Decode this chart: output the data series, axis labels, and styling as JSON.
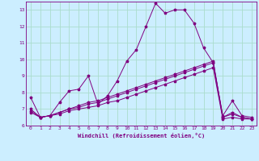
{
  "bg_color": "#cceeff",
  "grid_color": "#aaddcc",
  "line_color": "#800080",
  "marker": "*",
  "xlim": [
    -0.5,
    23.5
  ],
  "ylim": [
    6,
    13.5
  ],
  "yticks": [
    6,
    7,
    8,
    9,
    10,
    11,
    12,
    13
  ],
  "xticks": [
    0,
    1,
    2,
    3,
    4,
    5,
    6,
    7,
    8,
    9,
    10,
    11,
    12,
    13,
    14,
    15,
    16,
    17,
    18,
    19,
    20,
    21,
    22,
    23
  ],
  "xlabel": "Windchill (Refroidissement éolien,°C)",
  "curve1_y": [
    7.7,
    6.5,
    6.6,
    7.4,
    8.1,
    8.2,
    9.0,
    7.3,
    7.8,
    8.7,
    9.9,
    10.6,
    12.0,
    13.4,
    12.8,
    13.0,
    13.0,
    12.2,
    10.7,
    9.8,
    6.6,
    7.5,
    6.6,
    6.5
  ],
  "curve2_y": [
    6.8,
    6.5,
    6.6,
    6.7,
    6.9,
    7.0,
    7.1,
    7.2,
    7.4,
    7.5,
    7.7,
    7.9,
    8.1,
    8.3,
    8.5,
    8.7,
    8.9,
    9.1,
    9.3,
    9.5,
    6.4,
    6.5,
    6.4,
    6.4
  ],
  "curve3_y": [
    6.9,
    6.5,
    6.6,
    6.8,
    7.0,
    7.1,
    7.3,
    7.4,
    7.6,
    7.8,
    8.0,
    8.2,
    8.4,
    8.6,
    8.8,
    9.0,
    9.2,
    9.4,
    9.6,
    9.8,
    6.5,
    6.7,
    6.5,
    6.4
  ],
  "curve4_y": [
    7.0,
    6.5,
    6.6,
    6.8,
    7.0,
    7.2,
    7.4,
    7.5,
    7.7,
    7.9,
    8.1,
    8.3,
    8.5,
    8.7,
    8.9,
    9.1,
    9.3,
    9.5,
    9.7,
    9.9,
    6.5,
    6.8,
    6.5,
    6.4
  ]
}
